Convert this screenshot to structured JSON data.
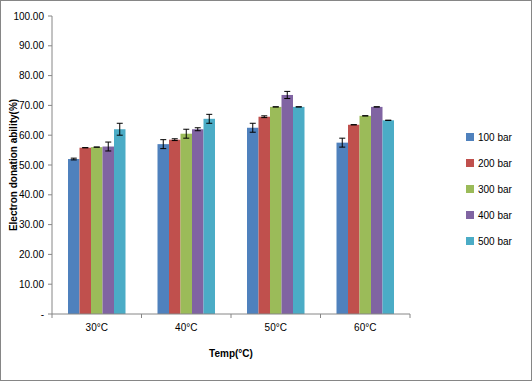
{
  "chart_data": {
    "type": "bar",
    "x_label": "Temp(°C)",
    "y_label": "Electron donation ability(%)",
    "categories": [
      "30°C",
      "40°C",
      "50°C",
      "60°C"
    ],
    "series": [
      {
        "name": "100 bar",
        "color": "#4f81bd",
        "values": [
          52,
          57,
          62.5,
          57.5
        ],
        "errors": [
          0.3,
          1.5,
          1.5,
          1.5
        ]
      },
      {
        "name": "200 bar",
        "color": "#c0504d",
        "values": [
          55.8,
          58.5,
          66.2,
          63.5
        ],
        "errors": [
          0,
          0.3,
          0.3,
          0
        ]
      },
      {
        "name": "300 bar",
        "color": "#9bbb59",
        "values": [
          56,
          60.5,
          69.5,
          66.5
        ],
        "errors": [
          0,
          1.5,
          0,
          0
        ]
      },
      {
        "name": "400 bar",
        "color": "#8064a2",
        "values": [
          56.2,
          62,
          73.5,
          69.5
        ],
        "errors": [
          1.5,
          0.5,
          1.2,
          0
        ]
      },
      {
        "name": "500 bar",
        "color": "#4bacc6",
        "values": [
          62,
          65.5,
          69.5,
          65
        ],
        "errors": [
          2,
          1.5,
          0,
          0
        ]
      }
    ],
    "ylim": [
      0,
      100
    ],
    "yticks": [
      {
        "value": 0,
        "label": "-"
      },
      {
        "value": 10,
        "label": "10.00"
      },
      {
        "value": 20,
        "label": "20.00"
      },
      {
        "value": 30,
        "label": "30.00"
      },
      {
        "value": 40,
        "label": "40.00"
      },
      {
        "value": 50,
        "label": "50.00"
      },
      {
        "value": 60,
        "label": "60.00"
      },
      {
        "value": 70,
        "label": "70.00"
      },
      {
        "value": 80,
        "label": "80.00"
      },
      {
        "value": 90,
        "label": "90.00"
      },
      {
        "value": 100,
        "label": "100.00"
      }
    ],
    "grid": false,
    "legend": "right"
  }
}
